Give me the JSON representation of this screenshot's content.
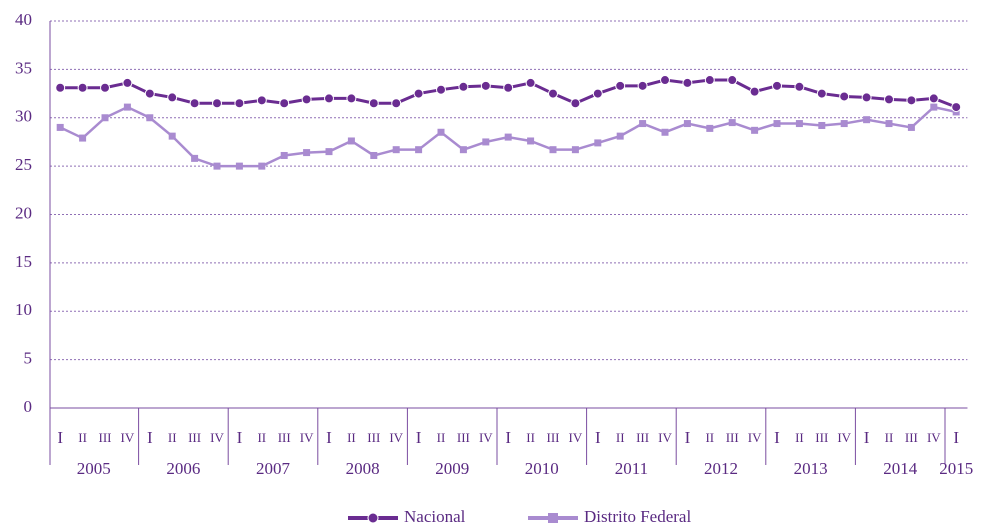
{
  "chart_data": {
    "type": "line",
    "categories": [
      "I",
      "II",
      "III",
      "IV",
      "I",
      "II",
      "III",
      "IV",
      "I",
      "II",
      "III",
      "IV",
      "I",
      "II",
      "III",
      "IV",
      "I",
      "II",
      "III",
      "IV",
      "I",
      "II",
      "III",
      "IV",
      "I",
      "II",
      "III",
      "IV",
      "I",
      "II",
      "III",
      "IV",
      "I",
      "II",
      "III",
      "IV",
      "I",
      "II",
      "III",
      "IV",
      "I"
    ],
    "years": [
      "2005",
      "2006",
      "2007",
      "2008",
      "2009",
      "2010",
      "2011",
      "2012",
      "2013",
      "2014",
      "2015"
    ],
    "series": [
      {
        "name": "Nacional",
        "color": "#6a2c91",
        "marker": "circle",
        "values": [
          33.1,
          33.1,
          33.1,
          33.6,
          32.5,
          32.1,
          31.5,
          31.5,
          31.5,
          31.8,
          31.5,
          31.9,
          32.0,
          32.0,
          31.5,
          31.5,
          32.5,
          32.9,
          33.2,
          33.3,
          33.1,
          33.6,
          32.5,
          31.5,
          32.5,
          33.3,
          33.3,
          33.9,
          33.6,
          33.9,
          33.9,
          32.7,
          33.3,
          33.2,
          32.5,
          32.2,
          32.1,
          31.9,
          31.8,
          32.0,
          31.1
        ]
      },
      {
        "name": "Distrito Federal",
        "color": "#a98bd0",
        "marker": "square",
        "values": [
          29.0,
          27.9,
          30.0,
          31.1,
          30.0,
          28.1,
          25.8,
          25.0,
          25.0,
          25.0,
          26.1,
          26.4,
          26.5,
          27.6,
          26.1,
          26.7,
          26.7,
          28.5,
          26.7,
          27.5,
          28.0,
          27.6,
          26.7,
          26.7,
          27.4,
          28.1,
          29.4,
          28.5,
          29.4,
          28.9,
          29.5,
          28.7,
          29.4,
          29.4,
          29.2,
          29.4,
          29.8,
          29.4,
          29.0,
          31.1,
          30.6
        ]
      }
    ],
    "ylim": [
      0,
      40
    ],
    "yticks": [
      0,
      5,
      10,
      15,
      20,
      25,
      30,
      35,
      40
    ],
    "grid": true
  }
}
